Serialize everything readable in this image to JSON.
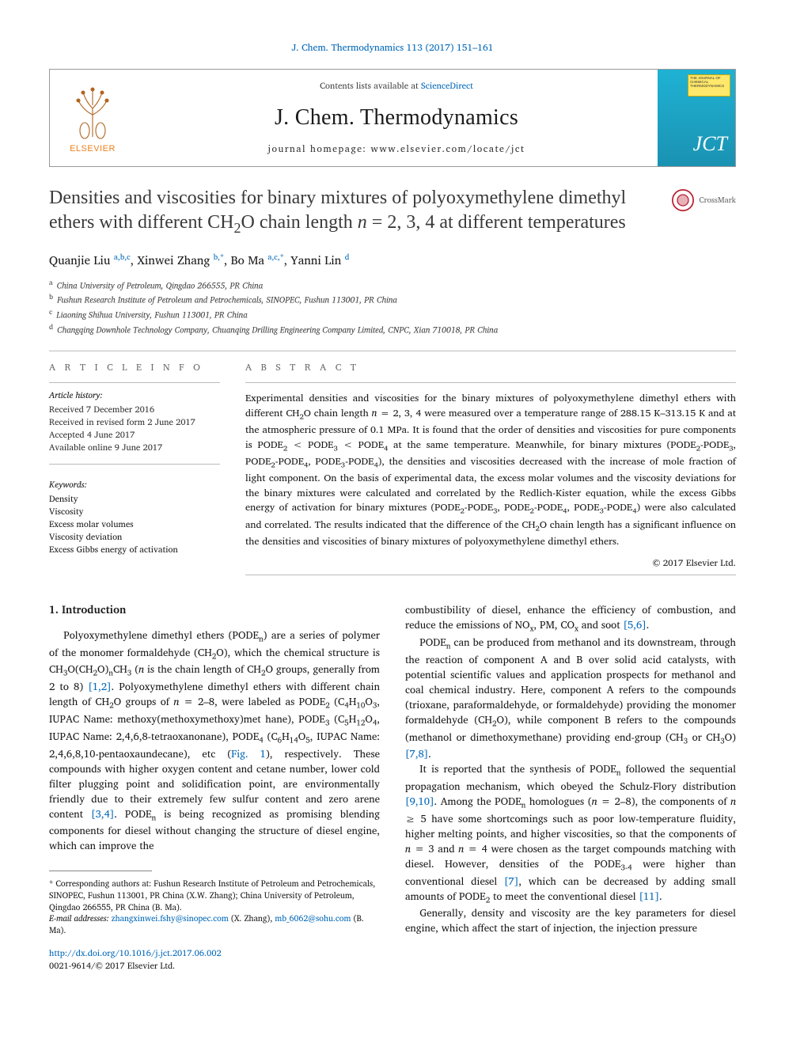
{
  "journal": {
    "citation": "J. Chem. Thermodynamics 113 (2017) 151–161",
    "contents_prefix": "Contents lists available at ",
    "contents_link": "ScienceDirect",
    "name": "J. Chem. Thermodynamics",
    "homepage_label": "journal homepage: ",
    "homepage_url": "www.elsevier.com/locate/jct",
    "publisher_logo_text": "ELSEVIER",
    "cover_badge": "THE JOURNAL OF CHEMICAL THERMODYNAMICS",
    "cover_short": "JCT"
  },
  "crossmark_label": "CrossMark",
  "article": {
    "title_html": "Densities and viscosities for binary mixtures of polyoxymethylene dimethyl ethers with different CH<sub>2</sub>O chain length <i>n</i> = 2, 3, 4 at different temperatures",
    "authors_html": "Quanjie Liu <sup><a href='#'>a,b,c</a></sup>, Xinwei Zhang <sup><a href='#'>b,</a></sup><sup>*</sup>, Bo Ma <sup><a href='#'>a,c,</a></sup><sup>*</sup>, Yanni Lin <sup><a href='#'>d</a></sup>",
    "affiliations": [
      {
        "sup": "a",
        "text": "China University of Petroleum, Qingdao 266555, PR China"
      },
      {
        "sup": "b",
        "text": "Fushun Research Institute of Petroleum and Petrochemicals, SINOPEC, Fushun 113001, PR China"
      },
      {
        "sup": "c",
        "text": "Liaoning Shihua University, Fushun 113001, PR China"
      },
      {
        "sup": "d",
        "text": "Changqing Downhole Technology Company, Chuanqing Drilling Engineering Company Limited, CNPC, Xian 710018, PR China"
      }
    ]
  },
  "info": {
    "article_info_head": "A R T I C L E   I N F O",
    "abstract_head": "A B S T R A C T",
    "history_label": "Article history:",
    "history": [
      "Received 7 December 2016",
      "Received in revised form 2 June 2017",
      "Accepted 4 June 2017",
      "Available online 9 June 2017"
    ],
    "keywords_label": "Keywords:",
    "keywords": [
      "Density",
      "Viscosity",
      "Excess molar volumes",
      "Viscosity deviation",
      "Excess Gibbs energy of activation"
    ],
    "abstract_html": "Experimental densities and viscosities for the binary mixtures of polyoxymethylene dimethyl ethers with different CH<sub>2</sub>O chain length <i>n</i> = 2, 3, 4 were measured over a temperature range of 288.15 K–313.15 K and at the atmospheric pressure of 0.1 MPa. It is found that the order of densities and viscosities for pure components is PODE<sub>2</sub> &lt; PODE<sub>3</sub> &lt; PODE<sub>4</sub> at the same temperature. Meanwhile, for binary mixtures (PODE<sub>2</sub>-PODE<sub>3</sub>, PODE<sub>2</sub>-PODE<sub>4</sub>, PODE<sub>3</sub>-PODE<sub>4</sub>), the densities and viscosities decreased with the increase of mole fraction of light component. On the basis of experimental data, the excess molar volumes and the viscosity deviations for the binary mixtures were calculated and correlated by the Redlich-Kister equation, while the excess Gibbs energy of activation for binary mixtures (PODE<sub>2</sub>-PODE<sub>3</sub>, PODE<sub>2</sub>-PODE<sub>4</sub>, PODE<sub>3</sub>-PODE<sub>4</sub>) were also calculated and correlated. The results indicated that the difference of the CH<sub>2</sub>O chain length has a significant influence on the densities and viscosities of binary mixtures of polyoxymethylene dimethyl ethers.",
    "copyright": "© 2017 Elsevier Ltd."
  },
  "body": {
    "section_heading": "1. Introduction",
    "left_paragraphs_html": [
      "Polyoxymethylene dimethyl ethers (PODE<sub>n</sub>) are a series of polymer of the monomer formaldehyde (CH<sub>2</sub>O), which the chemical structure is CH<sub>3</sub>O(CH<sub>2</sub>O)<sub>n</sub>CH<sub>3</sub> (<i>n</i> is the chain length of CH<sub>2</sub>O groups, generally from 2 to 8) <a href='#'>[1,2]</a>. Polyoxymethylene dimethyl ethers with different chain length of CH<sub>2</sub>O groups of <i>n</i> = 2–8, were labeled as PODE<sub>2</sub> (C<sub>4</sub>H<sub>10</sub>O<sub>3</sub>, IUPAC Name: methoxy(methoxymethoxy)met hane), PODE<sub>3</sub> (C<sub>5</sub>H<sub>12</sub>O<sub>4</sub>, IUPAC Name: 2,4,6,8-tetraoxanonane), PODE<sub>4</sub> (C<sub>6</sub>H<sub>14</sub>O<sub>5</sub>, IUPAC Name: 2,4,6,8,10-pentaoxaundecane), etc (<a href='#'>Fig. 1</a>), respectively. These compounds with higher oxygen content and cetane number, lower cold filter plugging point and solidification point, are environmentally friendly due to their extremely few sulfur content and zero arene content <a href='#'>[3,4]</a>. PODE<sub>n</sub> is being recognized as promising blending components for diesel without changing the structure of diesel engine, which can improve the"
    ],
    "right_paragraphs_html": [
      "combustibility of diesel, enhance the efficiency of combustion, and reduce the emissions of NO<sub>x</sub>, PM, CO<sub>x</sub> and soot <a href='#'>[5,6]</a>.",
      "PODE<sub>n</sub> can be produced from methanol and its downstream, through the reaction of component A and B over solid acid catalysts, with potential scientific values and application prospects for methanol and coal chemical industry. Here, component A refers to the compounds (trioxane, paraformaldehyde, or formaldehyde) providing the monomer formaldehyde (CH<sub>2</sub>O), while component B refers to the compounds (methanol or dimethoxymethane) providing end-group (CH<sub>3</sub> or CH<sub>3</sub>O) <a href='#'>[7,8]</a>.",
      "It is reported that the synthesis of PODE<sub>n</sub> followed the sequential propagation mechanism, which obeyed the Schulz-Flory distribution <a href='#'>[9,10]</a>. Among the PODE<sub>n</sub> homologues (<i>n</i> = 2–8), the components of <i>n</i> ≥ 5 have some shortcomings such as poor low-temperature fluidity, higher melting points, and higher viscosities, so that the components of <i>n</i> = 3 and <i>n</i> = 4 were chosen as the target compounds matching with diesel. However, densities of the PODE<sub>3-4</sub> were higher than conventional diesel <a href='#'>[7]</a>, which can be decreased by adding small amounts of PODE<sub>2</sub> to meet the conventional diesel <a href='#'>[11]</a>.",
      "Generally, density and viscosity are the key parameters for diesel engine, which affect the start of injection, the injection pressure"
    ]
  },
  "footnote": {
    "corr_label": "* Corresponding authors at: ",
    "corr_text": "Fushun Research Institute of Petroleum and Petrochemicals, SINOPEC, Fushun 113001, PR China (X.W. Zhang); China University of Petroleum, Qingdao 266555, PR China (B. Ma).",
    "email_label": "E-mail addresses:",
    "emails_html": "<a href='#'>zhangxinwei.fshy@sinopec.com</a> (X. Zhang), <a href='#'>mb_6062@sohu.com</a> (B. Ma).",
    "doi": "http://dx.doi.org/10.1016/j.jct.2017.06.002",
    "issn": "0021-9614/© 2017 Elsevier Ltd."
  },
  "colors": {
    "link": "#0067b8",
    "elsevier_orange": "#ef7f1a",
    "cover_blue_top": "#1fb2d4",
    "cover_blue_bottom": "#1a92b2",
    "badge_yellow": "#ffe86b",
    "rule_grey": "#bcbcbc",
    "text": "#1a1a1a"
  }
}
